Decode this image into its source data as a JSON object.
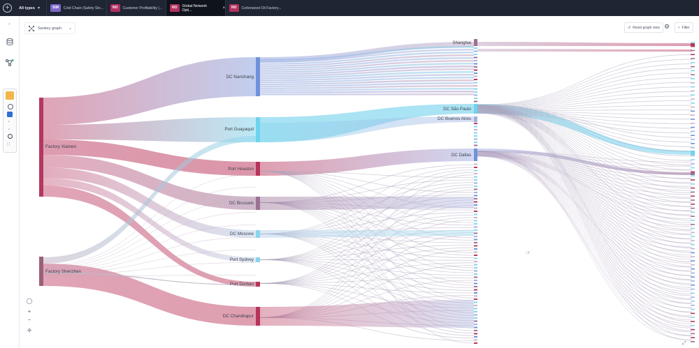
{
  "topbar": {
    "type_filter_label": "All types",
    "tabs": [
      {
        "badge": "SIM",
        "badge_color": "#7b67c9",
        "label": "Cold Chain (Safety Sto..."
      },
      {
        "badge": "NO",
        "badge_color": "#b2305f",
        "label": "Customer Profitability (..."
      },
      {
        "badge": "NO",
        "badge_color": "#b2305f",
        "label": "Global Network Opti...",
        "active": true
      },
      {
        "badge": "NO",
        "badge_color": "#b2305f",
        "label": "Cottonseed Oil Factory..."
      }
    ]
  },
  "toolbar": {
    "graph_type_label": "Sankey graph",
    "reset_label": "Reset graph view",
    "filter_label": "Filter"
  },
  "colors": {
    "factory": "#b4385e",
    "dc_blue": "#6f92dc",
    "port_cyan": "#6dd3ef",
    "port_red": "#b8345a",
    "mauve": "#9c7196"
  },
  "sankey": {
    "sources": [
      "Factory Xiamen",
      "Factory Shenzhen"
    ],
    "intermediates": [
      "DC Nanchang",
      "Port Guayaquil",
      "Port Houston",
      "DC Brussels",
      "DC Moscow",
      "Port Sydney",
      "Port Durban",
      "DC Chandrapur"
    ],
    "destinations": [
      "Shanghai",
      "DC São Paulo",
      "DC Buenos Aires",
      "DC Dallas"
    ]
  }
}
